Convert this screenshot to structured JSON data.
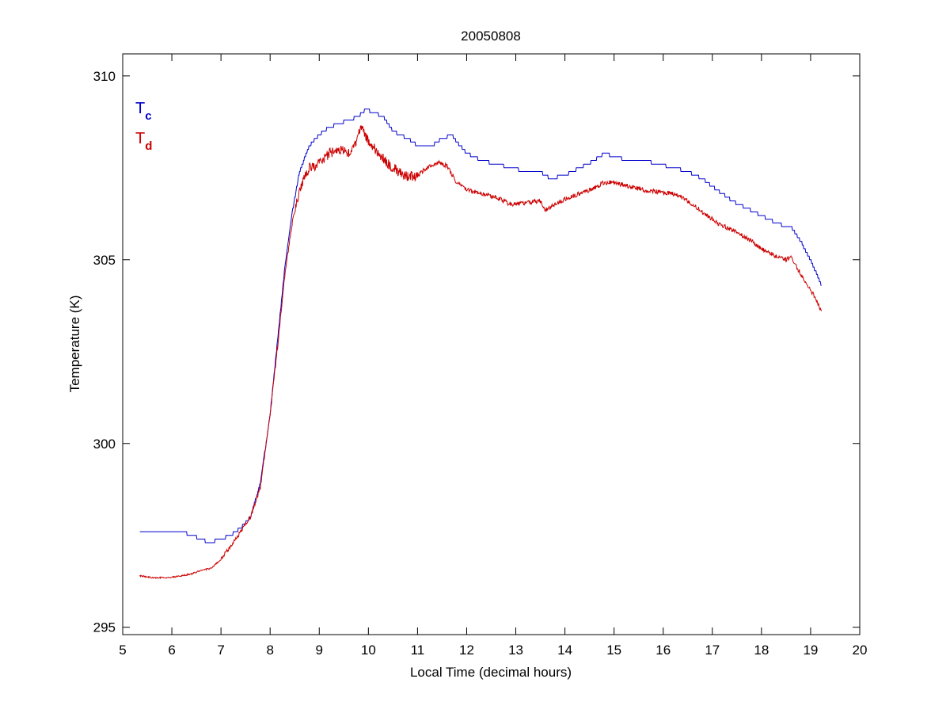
{
  "chart_data": {
    "type": "line",
    "title": "20050808",
    "xlabel": "Local Time (decimal hours)",
    "ylabel": "Temperature (K)",
    "xlim": [
      5,
      20
    ],
    "ylim": [
      294.8,
      310.6
    ],
    "xticks": [
      5,
      6,
      7,
      8,
      9,
      10,
      11,
      12,
      13,
      14,
      15,
      16,
      17,
      18,
      19,
      20
    ],
    "yticks": [
      295,
      300,
      305,
      310
    ],
    "grid": false,
    "legend_position": "top-left",
    "legend": [
      {
        "base": "T",
        "sub": "c",
        "color": "#0000cc"
      },
      {
        "base": "T",
        "sub": "d",
        "color": "#cc0000"
      }
    ],
    "series": [
      {
        "color": "#0000cc",
        "x": [
          5.35,
          6.0,
          6.2,
          6.4,
          6.6,
          6.75,
          7.0,
          7.2,
          7.4,
          7.6,
          7.8,
          8.0,
          8.15,
          8.3,
          8.45,
          8.6,
          8.8,
          9.0,
          9.2,
          9.4,
          9.6,
          9.8,
          9.95,
          10.1,
          10.3,
          10.5,
          10.8,
          11.0,
          11.3,
          11.5,
          11.7,
          11.8,
          12.0,
          12.3,
          12.6,
          12.9,
          13.2,
          13.5,
          13.7,
          14.0,
          14.3,
          14.6,
          14.8,
          15.0,
          15.3,
          15.6,
          15.9,
          16.2,
          16.5,
          16.8,
          17.1,
          17.4,
          17.7,
          18.0,
          18.3,
          18.5,
          18.6,
          18.8,
          19.0,
          19.22
        ],
        "y": [
          297.6,
          297.6,
          297.6,
          297.5,
          297.4,
          297.3,
          297.4,
          297.5,
          297.7,
          298.0,
          298.9,
          300.8,
          302.8,
          304.8,
          306.3,
          307.4,
          308.1,
          308.4,
          308.6,
          308.7,
          308.8,
          308.9,
          309.1,
          309.0,
          308.9,
          308.5,
          308.3,
          308.1,
          308.1,
          308.3,
          308.4,
          308.2,
          307.9,
          307.7,
          307.6,
          307.5,
          307.4,
          307.4,
          307.2,
          307.3,
          307.5,
          307.7,
          307.9,
          307.8,
          307.7,
          307.7,
          307.6,
          307.5,
          307.4,
          307.2,
          306.9,
          306.6,
          306.4,
          306.2,
          306.0,
          305.9,
          305.9,
          305.5,
          305.0,
          304.3
        ]
      },
      {
        "color": "#cc0000",
        "x": [
          5.35,
          5.6,
          5.9,
          6.2,
          6.4,
          6.6,
          6.8,
          7.0,
          7.2,
          7.4,
          7.6,
          7.8,
          8.0,
          8.15,
          8.3,
          8.45,
          8.6,
          8.8,
          9.0,
          9.2,
          9.4,
          9.6,
          9.75,
          9.85,
          10.0,
          10.2,
          10.4,
          10.6,
          10.8,
          11.0,
          11.2,
          11.4,
          11.6,
          11.8,
          12.0,
          12.3,
          12.6,
          12.9,
          13.2,
          13.5,
          13.6,
          13.8,
          14.0,
          14.3,
          14.6,
          14.8,
          15.0,
          15.3,
          15.6,
          15.9,
          16.2,
          16.5,
          16.8,
          17.1,
          17.4,
          17.7,
          18.0,
          18.3,
          18.5,
          18.6,
          18.8,
          19.0,
          19.22
        ],
        "y": [
          296.4,
          296.35,
          296.35,
          296.4,
          296.45,
          296.55,
          296.6,
          296.85,
          297.2,
          297.6,
          298.0,
          298.8,
          300.8,
          302.6,
          304.6,
          306.0,
          306.9,
          307.5,
          307.6,
          307.9,
          308.0,
          307.9,
          308.2,
          308.6,
          308.2,
          307.9,
          307.6,
          307.4,
          307.25,
          307.3,
          307.5,
          307.65,
          307.55,
          307.1,
          306.9,
          306.8,
          306.7,
          306.5,
          306.55,
          306.6,
          306.35,
          306.5,
          306.65,
          306.8,
          306.95,
          307.1,
          307.1,
          307.0,
          306.9,
          306.85,
          306.8,
          306.6,
          306.3,
          306.0,
          305.8,
          305.6,
          305.3,
          305.1,
          305.0,
          305.1,
          304.6,
          304.2,
          303.6
        ]
      }
    ]
  }
}
